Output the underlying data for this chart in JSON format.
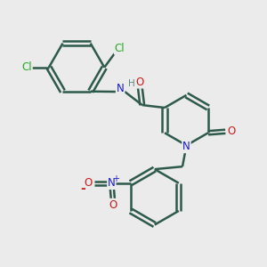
{
  "background_color": "#ebebeb",
  "bond_color": "#2d5a4a",
  "bond_width": 1.8,
  "atom_colors": {
    "C": "#2d5a4a",
    "N": "#1a1acc",
    "O": "#cc1a1a",
    "H": "#5a8a80",
    "Cl": "#22aa22",
    "NO2_N": "#1a1acc",
    "NO2_O": "#cc1a1a"
  },
  "font_size": 8.5
}
